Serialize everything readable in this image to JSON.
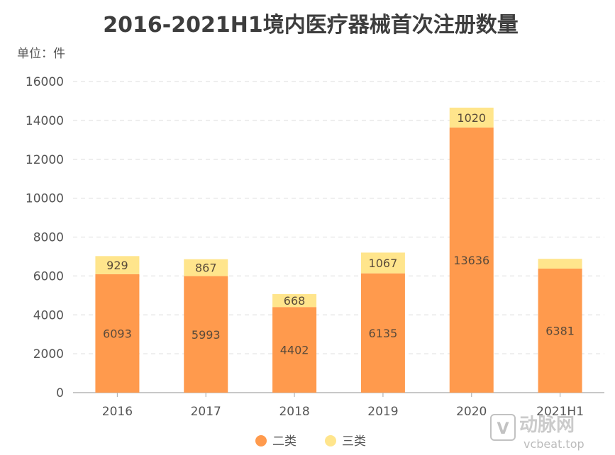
{
  "chart_data": {
    "type": "bar",
    "stacked": true,
    "title": "2016-2021H1境内医疗器械首次注册数量",
    "unit_label": "单位：件",
    "categories": [
      "2016",
      "2017",
      "2018",
      "2019",
      "2020",
      "2021H1"
    ],
    "series": [
      {
        "name": "二类",
        "values": [
          6093,
          5993,
          4402,
          6135,
          13636,
          6381
        ],
        "labels": [
          "6093",
          "5993",
          "4402",
          "6135",
          "13636",
          "6381"
        ]
      },
      {
        "name": "三类",
        "values": [
          929,
          867,
          668,
          1067,
          1020,
          500
        ],
        "labels": [
          "929",
          "867",
          "668",
          "1067",
          "1020",
          ""
        ]
      }
    ],
    "ylim": [
      0,
      16000
    ],
    "yticks": [
      0,
      2000,
      4000,
      6000,
      8000,
      10000,
      12000,
      14000,
      16000
    ],
    "grid": true,
    "legend_position": "bottom-center"
  },
  "colors": {
    "二类": "#FF9A4D",
    "三类": "#FFE58C",
    "title": "#3d3d3d",
    "axis_text": "#555555",
    "grid": "#e3e3e3"
  },
  "watermark": {
    "text": "vcbeat.top",
    "logo_text": "动脉网"
  }
}
